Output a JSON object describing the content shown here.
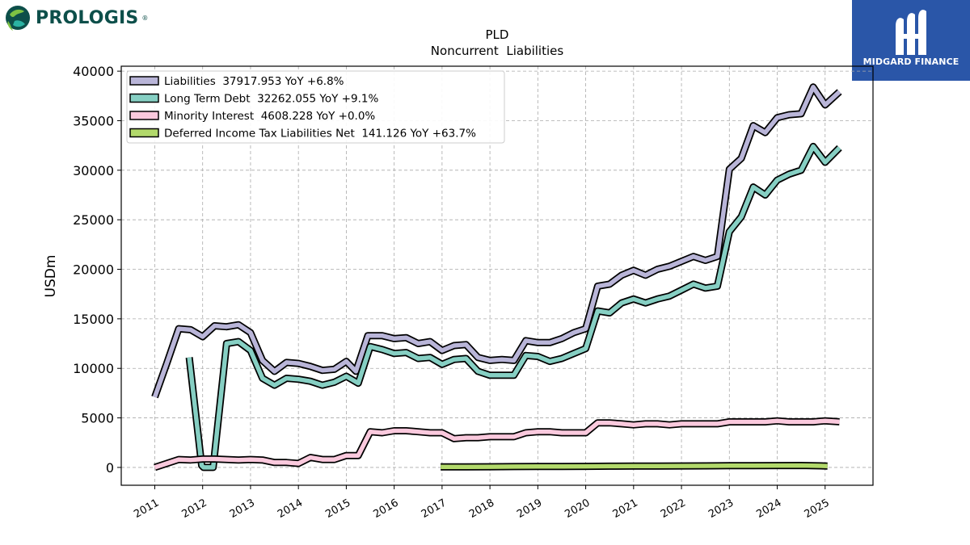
{
  "branding": {
    "left_logo_text": "PROLOGIS",
    "left_logo_mark": "®",
    "right_logo_text": "MIDGARD FINANCE",
    "colors": {
      "prologis_teal": "#0d4f4a",
      "prologis_green": "#7ec243",
      "midgard_blue": "#2a56a8"
    }
  },
  "chart_data": {
    "type": "line",
    "title": "PLD",
    "subtitle": "Noncurrent  Liabilities",
    "ylabel": "USDm",
    "xlabel": "",
    "ylim": [
      -1800,
      40500
    ],
    "xlim": [
      2010.3,
      2026.0
    ],
    "y_ticks": [
      0,
      5000,
      10000,
      15000,
      20000,
      25000,
      30000,
      35000,
      40000
    ],
    "x_ticks": [
      2011,
      2012,
      2013,
      2014,
      2015,
      2016,
      2017,
      2018,
      2019,
      2020,
      2021,
      2022,
      2023,
      2024,
      2025
    ],
    "grid": true,
    "legend_position": "top-left",
    "series": [
      {
        "name": "Liabilities",
        "legend": "Liabilities  37917.953 YoY +6.8%",
        "color": "#b9b5d8",
        "x": [
          2011.0,
          2011.25,
          2011.5,
          2011.75,
          2012.0,
          2012.25,
          2012.5,
          2012.75,
          2013.0,
          2013.25,
          2013.5,
          2013.75,
          2014.0,
          2014.25,
          2014.5,
          2014.75,
          2015.0,
          2015.2,
          2015.45,
          2015.75,
          2016.0,
          2016.25,
          2016.5,
          2016.75,
          2017.0,
          2017.25,
          2017.5,
          2017.75,
          2018.0,
          2018.25,
          2018.5,
          2018.75,
          2019.0,
          2019.25,
          2019.5,
          2019.75,
          2020.0,
          2020.25,
          2020.5,
          2020.75,
          2021.0,
          2021.25,
          2021.5,
          2021.75,
          2022.0,
          2022.25,
          2022.5,
          2022.75,
          2023.0,
          2023.25,
          2023.5,
          2023.75,
          2024.0,
          2024.25,
          2024.5,
          2024.75,
          2025.0,
          2025.3
        ],
        "values": [
          7100,
          10500,
          14000,
          13900,
          13200,
          14300,
          14200,
          14400,
          13600,
          10800,
          9700,
          10600,
          10500,
          10200,
          9800,
          9900,
          10700,
          9700,
          13300,
          13300,
          13000,
          13100,
          12500,
          12700,
          11800,
          12300,
          12400,
          11100,
          10800,
          10900,
          10800,
          12800,
          12600,
          12600,
          13000,
          13600,
          14000,
          18300,
          18500,
          19400,
          19900,
          19400,
          20000,
          20300,
          20800,
          21300,
          20900,
          21300,
          30100,
          31200,
          34500,
          33800,
          35300,
          35600,
          35700,
          38400,
          36600,
          37918
        ]
      },
      {
        "name": "Long Term Debt",
        "legend": "Long Term Debt  32262.055 YoY +9.1%",
        "color": "#86cfc3",
        "x": [
          2011.72,
          2011.98,
          2012.02,
          2012.22,
          2012.5,
          2012.75,
          2013.0,
          2013.25,
          2013.5,
          2013.75,
          2014.0,
          2014.25,
          2014.5,
          2014.75,
          2015.0,
          2015.25,
          2015.5,
          2015.75,
          2016.0,
          2016.25,
          2016.5,
          2016.75,
          2017.0,
          2017.25,
          2017.5,
          2017.75,
          2018.0,
          2018.25,
          2018.5,
          2018.75,
          2019.0,
          2019.25,
          2019.5,
          2019.75,
          2020.0,
          2020.25,
          2020.5,
          2020.75,
          2021.0,
          2021.25,
          2021.5,
          2021.75,
          2022.0,
          2022.25,
          2022.5,
          2022.75,
          2023.0,
          2023.25,
          2023.5,
          2023.75,
          2024.0,
          2024.25,
          2024.5,
          2024.75,
          2025.0,
          2025.3
        ],
        "values": [
          11100,
          200,
          0,
          0,
          12500,
          12700,
          11800,
          9000,
          8300,
          9000,
          8900,
          8700,
          8300,
          8600,
          9200,
          8500,
          12200,
          11900,
          11500,
          11600,
          11000,
          11100,
          10400,
          10900,
          11000,
          9700,
          9300,
          9300,
          9300,
          11300,
          11200,
          10700,
          11000,
          11500,
          12000,
          15800,
          15600,
          16600,
          17000,
          16600,
          17000,
          17300,
          17900,
          18500,
          18100,
          18300,
          23800,
          25300,
          28300,
          27500,
          29000,
          29600,
          30000,
          32400,
          30800,
          32262
        ]
      },
      {
        "name": "Minority Interest",
        "legend": "Minority Interest  4608.228 YoY +0.0%",
        "color": "#fac9dd",
        "x": [
          2011.0,
          2011.25,
          2011.5,
          2011.75,
          2012.0,
          2012.25,
          2012.5,
          2012.75,
          2013.0,
          2013.25,
          2013.5,
          2013.75,
          2014.0,
          2014.25,
          2014.5,
          2014.75,
          2015.0,
          2015.25,
          2015.5,
          2015.75,
          2016.0,
          2016.25,
          2016.5,
          2016.75,
          2017.0,
          2017.25,
          2017.5,
          2017.75,
          2018.0,
          2018.25,
          2018.5,
          2018.75,
          2019.0,
          2019.25,
          2019.5,
          2019.75,
          2020.0,
          2020.25,
          2020.5,
          2020.75,
          2021.0,
          2021.25,
          2021.5,
          2021.75,
          2022.0,
          2022.25,
          2022.5,
          2022.75,
          2023.0,
          2023.25,
          2023.5,
          2023.75,
          2024.0,
          2024.25,
          2024.5,
          2024.75,
          2025.0,
          2025.3
        ],
        "values": [
          0,
          400,
          800,
          750,
          850,
          850,
          800,
          750,
          800,
          750,
          500,
          500,
          400,
          1000,
          800,
          800,
          1200,
          1200,
          3600,
          3500,
          3700,
          3700,
          3600,
          3500,
          3500,
          2900,
          3000,
          3000,
          3100,
          3100,
          3100,
          3500,
          3600,
          3600,
          3500,
          3500,
          3500,
          4500,
          4500,
          4400,
          4300,
          4400,
          4400,
          4300,
          4400,
          4400,
          4400,
          4400,
          4600,
          4600,
          4600,
          4600,
          4700,
          4600,
          4600,
          4600,
          4700,
          4608
        ]
      },
      {
        "name": "Deferred Income Tax Liabilities Net",
        "legend": "Deferred Income Tax Liabilities Net  141.126 YoY +63.7%",
        "color": "#b2d96b",
        "x": [
          2016.97,
          2017.5,
          2018.0,
          2018.5,
          2019.0,
          2019.5,
          2020.0,
          2020.5,
          2021.0,
          2021.5,
          2022.0,
          2022.5,
          2023.0,
          2023.5,
          2024.0,
          2024.5,
          2025.05
        ],
        "values": [
          50,
          60,
          70,
          80,
          90,
          100,
          110,
          120,
          130,
          140,
          150,
          160,
          170,
          180,
          190,
          200,
          141
        ]
      }
    ]
  }
}
